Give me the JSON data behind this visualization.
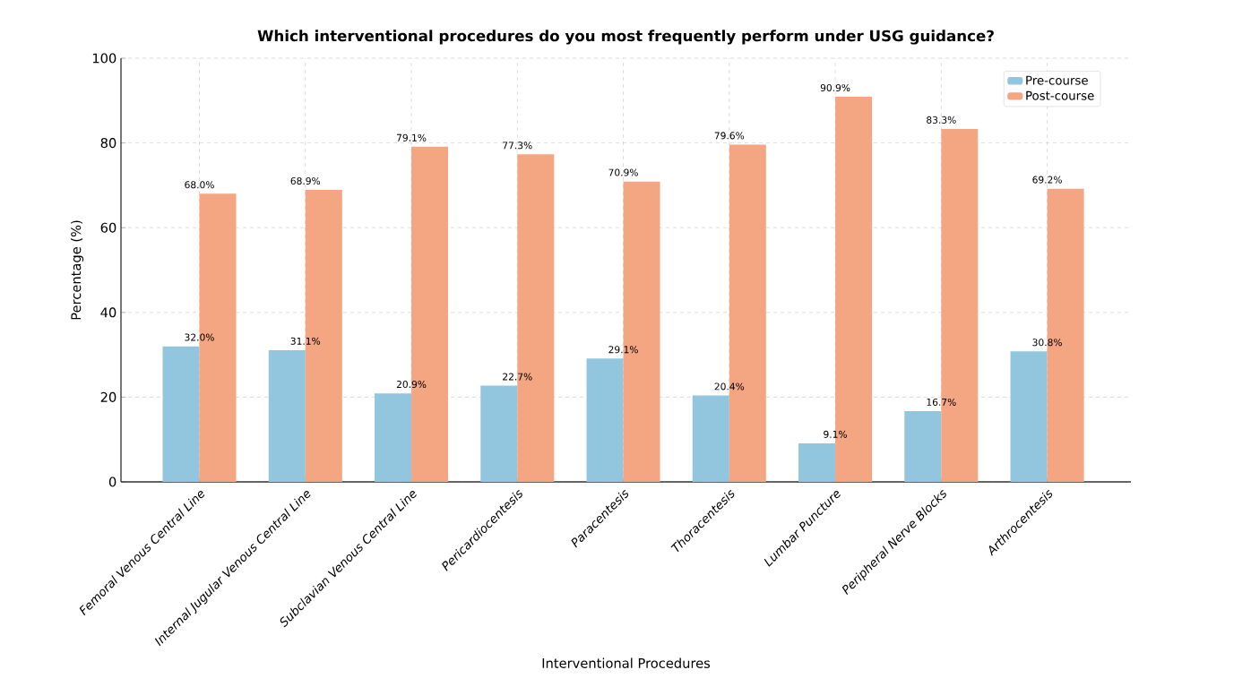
{
  "chart_data": {
    "type": "bar",
    "title": "Which interventional procedures do you most frequently perform under USG guidance?",
    "xlabel": "Interventional Procedures",
    "ylabel": "Percentage (%)",
    "categories": [
      "Femoral Venous Central Line",
      "Internal Jugular Venous Central Line",
      "Subclavian Venous Central Line",
      "Pericardiocentesis",
      "Paracentesis",
      "Thoracentesis",
      "Lumbar Puncture",
      "Peripheral Nerve Blocks",
      "Arthrocentesis"
    ],
    "series": [
      {
        "name": "Pre-course",
        "color": "#92c5de",
        "values": [
          32.0,
          31.1,
          20.9,
          22.7,
          29.1,
          20.4,
          9.1,
          16.7,
          30.8
        ],
        "value_labels": [
          "32.0%",
          "31.1%",
          "20.9%",
          "22.7%",
          "29.1%",
          "20.4%",
          "9.1%",
          "16.7%",
          "30.8%"
        ]
      },
      {
        "name": "Post-course",
        "color": "#f4a582",
        "values": [
          68.0,
          68.9,
          79.1,
          77.3,
          70.9,
          79.6,
          90.9,
          83.3,
          69.2
        ],
        "value_labels": [
          "68.0%",
          "68.9%",
          "79.1%",
          "77.3%",
          "70.9%",
          "79.6%",
          "90.9%",
          "83.3%",
          "69.2%"
        ]
      }
    ],
    "ylim": [
      0,
      100
    ],
    "yticks": [
      0,
      20,
      40,
      60,
      80,
      100
    ],
    "grid": true,
    "legend": "top right"
  }
}
